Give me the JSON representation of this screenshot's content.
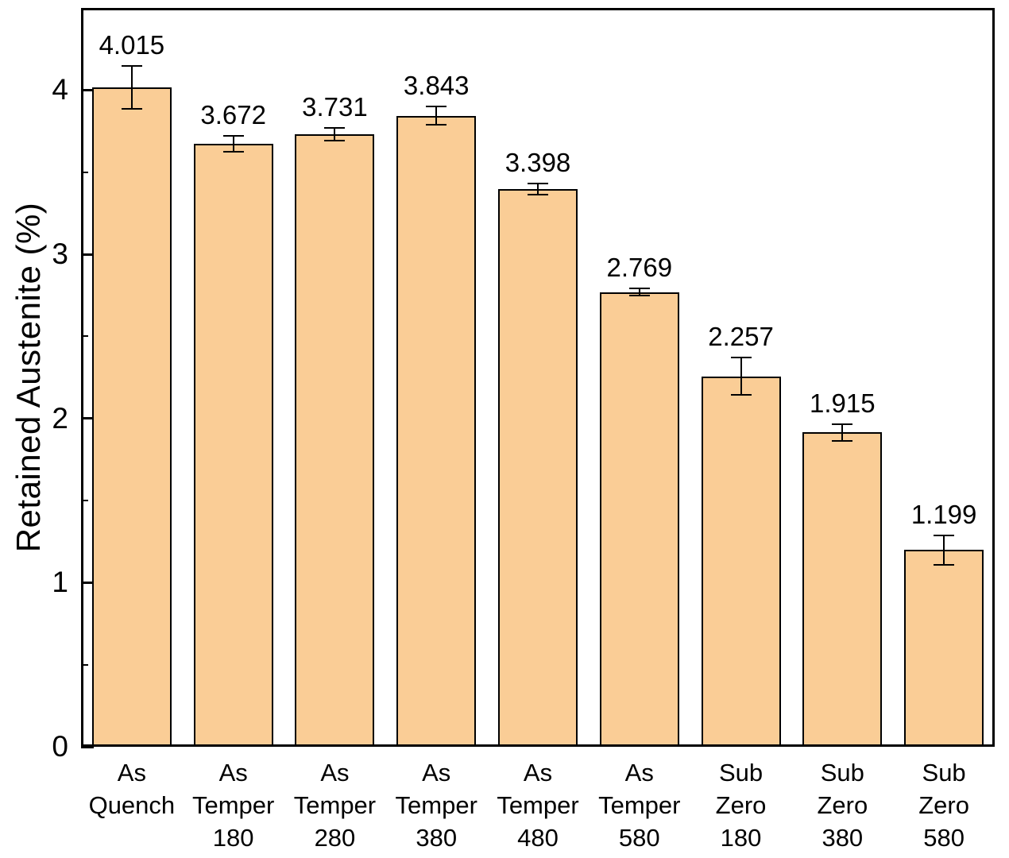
{
  "chart_data": {
    "type": "bar",
    "title": "",
    "xlabel": "",
    "ylabel": "Retained Austenite (%)",
    "ylim": [
      0,
      4.5
    ],
    "yticks": [
      0,
      1,
      2,
      3,
      4
    ],
    "minor_tick_step": 0.5,
    "grid": false,
    "legend": "none",
    "bar_color": "#FACD96",
    "bar_border_color": "#000000",
    "categories": [
      [
        "As",
        "Quench"
      ],
      [
        "As",
        "Temper",
        "180"
      ],
      [
        "As",
        "Temper",
        "280"
      ],
      [
        "As",
        "Temper",
        "380"
      ],
      [
        "As",
        "Temper",
        "480"
      ],
      [
        "As",
        "Temper",
        "580"
      ],
      [
        "Sub",
        "Zero",
        "180"
      ],
      [
        "Sub",
        "Zero",
        "380"
      ],
      [
        "Sub",
        "Zero",
        "580"
      ]
    ],
    "values": [
      4.015,
      3.672,
      3.731,
      3.843,
      3.398,
      2.769,
      2.257,
      1.915,
      1.199
    ],
    "errors": [
      0.13,
      0.05,
      0.04,
      0.055,
      0.035,
      0.022,
      0.115,
      0.05,
      0.09
    ],
    "value_labels": [
      "4.015",
      "3.672",
      "3.731",
      "3.843",
      "3.398",
      "2.769",
      "2.257",
      "1.915",
      "1.199"
    ]
  }
}
